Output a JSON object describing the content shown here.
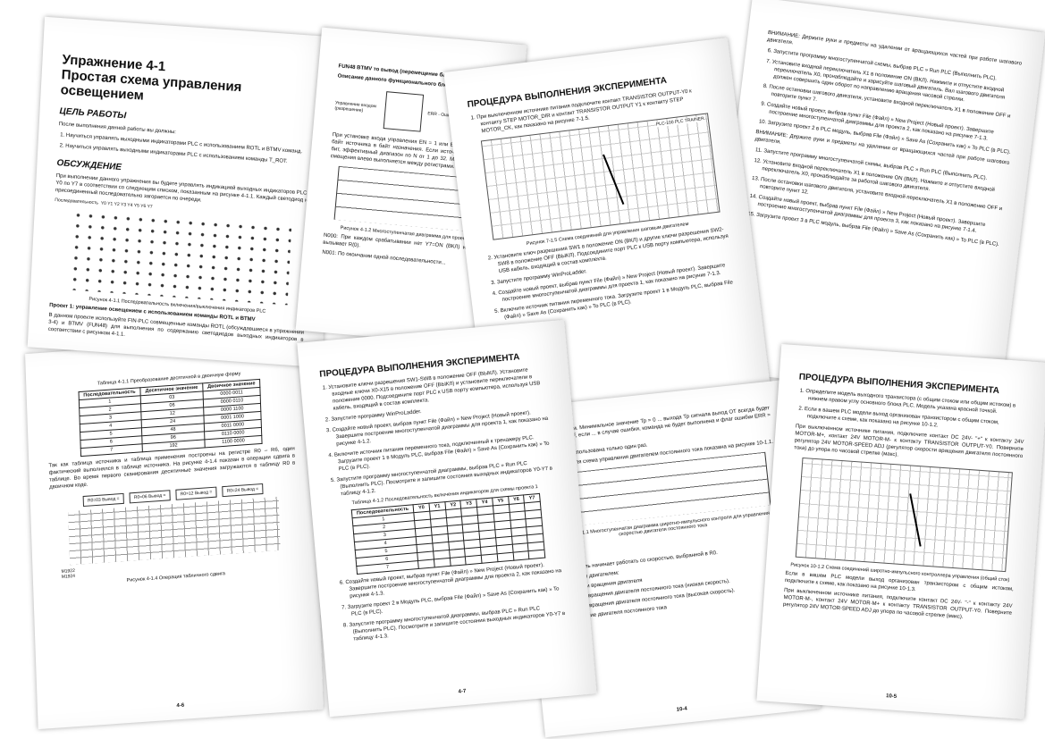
{
  "p1": {
    "title1": "Упражнение 4-1",
    "title2": "Простая схема управления освещением",
    "goal_h": "ЦЕЛЬ РАБОТЫ",
    "goal_intro": "После выполнения данной работы вы должны:",
    "goal_items": [
      "1. Научиться управлять выходными индикаторами PLC с использованием ROTL и BTMV команд.",
      "2. Научиться управлять выходными индикаторами PLC с использованием команды T_ROT."
    ],
    "disc_h": "ОБСУЖДЕНИЕ",
    "disc_text": "При выполнении данного упражнения вы будете управлять индикацией выходных индикаторов PLC с Y0 по Y7 в соответствии со следующим списком, показанным на рисунке 4-1.1. Каждый светодиод не присоединенный последовательно загорается по очереди.",
    "fig_label": "Последовательность",
    "fig_cols": "Y0  Y1  Y2  Y3  Y4  Y5  Y6  Y7",
    "fig_cap": "Рисунок 4-1.1   Последовательность включения/выключения индикаторов PLC",
    "proj_h": "Проект 1: управление освещением с использованием команды ROTL и BTMV",
    "proj_text": "В данном проекте используйте FIN-PLC совмещенные команды ROTL (обсуждавшиеся в упражнении 3-4) и BTMV (FUN48) для выполнения по содержанию светодиодов выходных индикаторов в соответствии с рисунком 4-1.1."
  },
  "p2": {
    "title": "FUN48 BTMV то вывод (перемещение байта)",
    "sub": "Описание данного функционального блока",
    "block_l": "Управление входом (разрешение)",
    "block_r": "ERR - Ошибка",
    "text": "При установке входа управления EN = 1 или EN↑ блок копирует байт источника в байт назначения. Если источник содержит 16 бит, эффективный диапазон по N от 1 до 32. Минимальный шаг смещения влево выполняется между регистрами.",
    "fig_cap": "Рисунок 4-1.2   Многоступенчатая диаграмма для проекта 1",
    "n1": "N000: При каждом срабатывании нет Y7=ON (ВКЛ) и Y0=OFF вызывает R(0).",
    "n2": "N001: По окончании одной последовательности..."
  },
  "p3": {
    "title": "ПРОЦЕДУРА ВЫПОЛНЕНИЯ ЭКСПЕРИМЕНТА",
    "step1": "1. При выключенном источнике питания подключите контакт TRANSISTOR OUTPUT-Y0 к контакту STEP MOTOR_DIR и контакт TRANSISTOR OUTPUT Y1 к контакту STEP MOTOR_CK, как показано на рисунке 7-1.5.",
    "board_label": "PLC-100  PLC TRAINER",
    "fig_cap": "Рисунок 7-1.5   Схема соединений для управления шаговым двигателем",
    "step2": "2. Установите ключ разрешения SW1 в положение ON (ВКЛ) и другие ключи разрешения SW2-SW8 в положение OFF (ВЫКЛ). Подсоедините порт PLC к USB порту компьютера, используя USB кабель, входящий в состав комплекта.",
    "step3": "3. Запустите программу WinProLadder.",
    "step4": "4. Создайте новый проект, выбрав пункт File (Файл) » New Project (Новый проект). Завершите построение многоступенчатой диаграммы для проекта 1, как показано на рисунке 7-1.3.",
    "step5": "5. Включите источник питания переменного тока. Загрузите проект 1 в Модуль PLC, выбрав File (Файл) » Save As (Сохранить как) » To PLC (в PLC).",
    "num": "7-10"
  },
  "p4": {
    "warn1": "ВНИМАНИЕ:  Держите руки и предметы на удалении от вращающихся частей при работе шагового двигателя.",
    "step6": "6. Запустите программу многоступенчатой схемы, выбрав PLC » Run PLC (Выполнить PLC).",
    "step7": "7. Установите входной переключатель X1 в положение ON (ВКЛ). Нажмите и отпустите входной переключатель X0, пронаблюдайте и зарисуйте шаговый двигатель. Вал шагового двигателя должен совершить один оборот по направлению вращения часовой стрелки.",
    "step8": "8. После остановки шагового двигателя, установите входной переключатель X1 в положение OFF и повторите пункт 7.",
    "step9": "9. Создайте новый проект, выбрав пункт File (Файл) » New Project (Новый проект). Завершите построение многоступенчатой диаграммы для проекта 2, как показано на рисунке 7-1.3.",
    "step10": "10. Загрузите проект 2 в PLC модуль, выбрав File (Файл) » Save As (Сохранить как) » To PLC (в PLC).",
    "warn2": "ВНИМАНИЕ:  Держите руки и предметы на удалении от вращающихся частей при работе шагового двигателя.",
    "step11": "11. Запустите программу многоступенчатой схемы, выбрав PLC » Run PLC (Выполнить PLC).",
    "step12": "12. Установите входной переключатель X1 в положение ON (ВКЛ). Нажмите и отпустите входной переключатель X0, пронаблюдайте за работой шагового двигателя.",
    "step13": "13. После остановки шагового двигателя, установите входной переключатель X1 в положение OFF и повторите пункт 12.",
    "step14": "14. Создайте новый проект, выбрав пункт File (Файл) » New Project (Новый проект). Завершите построение многоступенчатой диаграммы для проекта 3, как показано на рисунке 7-1.4.",
    "step15": "15. Загрузите проект 3 в PLC модуль, выбрав File (Файл) » Save As (Сохранить как) » To PLC (в PLC).",
    "num": "7-11"
  },
  "p5": {
    "table_cap": "Таблица 4-1.1   Преобразование десятичной в двоичную форму",
    "headers": [
      "Последовательность",
      "Десятичное значение",
      "Двоичное значение"
    ],
    "rows": [
      [
        "1",
        "03",
        "0000 0011"
      ],
      [
        "2",
        "06",
        "0000 0110"
      ],
      [
        "3",
        "12",
        "0000 1100"
      ],
      [
        "4",
        "24",
        "0001 1000"
      ],
      [
        "5",
        "48",
        "0011 0000"
      ],
      [
        "6",
        "96",
        "0110 0000"
      ],
      [
        "7",
        "192",
        "1100 0000"
      ]
    ],
    "text": "Так как таблица источника и таблица применения построены на регистре R0 – R6, один фактический выполнялся в таблице источника. На рисунке 4-1.4 показан в операции сдвига в таблице. Во время первого сканирования десятичные значения загружаются в таблицу R0 в двоичном коде.",
    "boxes": [
      "R0=03 Вывод =",
      "R0=06 Вывод =",
      "R0=12 Вывод =",
      "R0=24 Вывод ="
    ],
    "m1": "M1922",
    "m2": "M1924",
    "fig_cap": "Рисунок 4-1.4   Операция табличного сдвига",
    "num": "4-6"
  },
  "p6": {
    "title": "ПРОЦЕДУРА ВЫПОЛНЕНИЯ ЭКСПЕРИМЕНТА",
    "step1": "1. Установите ключи разрешения SW1-SW8 в положение OFF (ВЫКЛ). Установите входные ключи X0-X15 в положение OFF (ВЫКЛ) и установите переключатели в положение 0000. Подсоедините порт PLC к USB порту компьютера, используя USB кабель, входящий в состав комплекта.",
    "step2": "2. Запустите программу WinProLadder.",
    "step3": "3. Создайте новый проект, выбрав пункт File (Файл) » New Project (Новый проект). Завершите построение многоступенчатой диаграммы для проекта 1, как показано на рисунке 4-1.2.",
    "step4": "4. Включите источник питания переменного тока, подключенный к тренажеру PLC. Загрузите проект 1 в Модуль PLC, выбрав File (Файл) » Save As (Сохранить как) » To PLC (в PLC).",
    "step5": "5. Запустите программу многоступенчатой диаграммы, выбрав PLC » Run PLC (Выполнить PLC). Посмотрите и запишите состояния выходных индикаторов Y0-Y7 в таблицу 4-1.2.",
    "table_cap": "Таблица 4-1.2   Последовательность включения индикаторов для схемы проекта 1",
    "headers": [
      "Последовательность",
      "Y0",
      "Y1",
      "Y2",
      "Y3",
      "Y4",
      "Y5",
      "Y6",
      "Y7"
    ],
    "rows": [
      "1",
      "2",
      "3",
      "4",
      "5",
      "6",
      "7"
    ],
    "step6": "6. Создайте новый проект, выбрав пункт File (Файл) » New Project (Новый проект). Завершите построение многоступенчатой диаграммы для проекта 2, как показано на рисунке 4-1.3.",
    "step7": "7. Загрузите проект 2 в Модуль PLC, выбрав File (Файл) » Save As (Сохранить как) » To PLC (в PLC).",
    "step8": "8. Запустите программу многоступенчатой диаграммы, выбрав PLC » Run PLC (Выполнить PLC). Посмотрите и запишите состояния выходных индикаторов Y0-Y7 в таблицу 4-1.3.",
    "num": "4-7"
  },
  "p7": {
    "text1": "...разрешение Тм. Минимальное значение Тр = 0 ... выхода Тр сигнала выход ОТ всегда будет в состоянии OFF, если ... в случае ошибки, команда не будет выполнена и флаг ошибки ERR = 1.",
    "text2": "...может быть использована только один раз.",
    "text3": "...ателя двигателя схема управления двигателем постоянного тока показана на рисунке 10-1.1.",
    "fig_cap": "Рисунок 10-1.1   Многоступенчатая диаграмма широтно-импульсного контроля для управления скоростью двигателя постоянного тока",
    "n1": "ON, R0=5",
    "n2": "ON, R0=20.",
    "n3": "...ь ON двигатель начинает работать со скоростью, выбранной в R0.",
    "h1": "...ы управления двигателем:",
    "l1": "...ание скорости вращения двигателя",
    "l2": "...ает скорость вращения двигателя постоянного тока (низкая скорость).",
    "l3": "...ает скорость вращения двигателя постоянного тока (высокая скорость).",
    "l4": "...ет направление двигателя постоянного тока",
    "num": "10-4"
  },
  "p8": {
    "title": "ПРОЦЕДУРА ВЫПОЛНЕНИЯ ЭКСПЕРИМЕНТА",
    "step1": "1. Определите модель выходного транзистора (с общим стоком или общим истоком) в нижнем правом углу основного блока PLC. Модель указана красной точкой.",
    "step2": "2. Если в вашем PLC модели выход организован транзистором с общим стоком, подключите к схеме, как показано на рисунке 10-1.2.",
    "text1": "При выключенном источнике питания, подключите контакт DC 24V- \"+\" к контакту 24V MOTOR-M+, контакт 24V MOTOR-M- к контакту TRANSISTOR OUTPUT-Y0. Поверните регулятор 24V MOTOR-SPEED ADJ (регулятор скорости вращения двигателя постоянного тока) до упора по часовой стрелке (макс).",
    "fig_cap": "Рисунок 10-1.2   Схема соединений широтно-импульсного контроллера управления (общий сток)",
    "text2": "Если в вашем PLC модели выход организован транзистором с общим истоком, подключите к схеме, как показано на рисунке 10-1.3.",
    "text3": "При выключенном источнике питания, подключите контакт DC 24V- \"-\" к контакту 24V MOTOR-M-, контакт 24V MOTOR-M+ к контакту TRANSISTOR OUTPUT-Y0. Поверните регулятор 24V MOTOR-SPEED ADJ до упора по часовой стрелке (макс).",
    "num": "10-5"
  }
}
